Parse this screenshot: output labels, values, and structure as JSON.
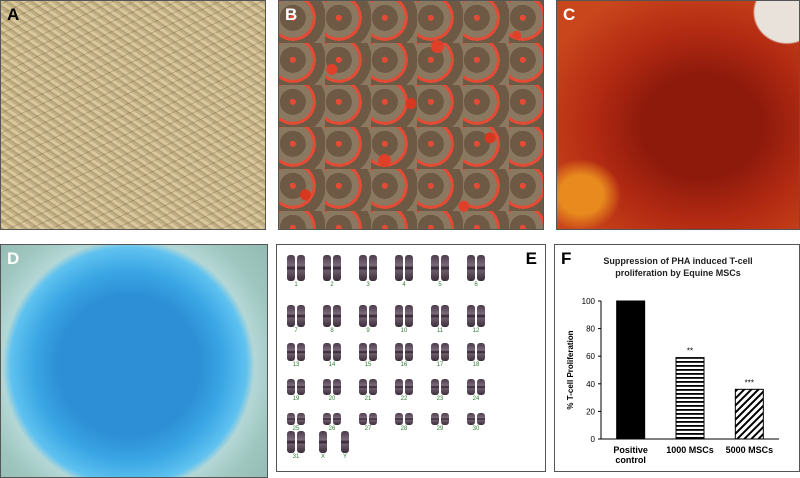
{
  "panels": {
    "a": {
      "label": "A"
    },
    "b": {
      "label": "B"
    },
    "c": {
      "label": "C"
    },
    "d": {
      "label": "D"
    },
    "e": {
      "label": "E"
    },
    "f": {
      "label": "F"
    }
  },
  "karyotype": {
    "rows": [
      [
        "1",
        "2",
        "3",
        "4",
        "5",
        "6"
      ],
      [
        "7",
        "8",
        "9",
        "10",
        "11",
        "12"
      ],
      [
        "13",
        "14",
        "15",
        "16",
        "17",
        "18"
      ],
      [
        "19",
        "20",
        "21",
        "22",
        "23",
        "24"
      ],
      [
        "25",
        "26",
        "27",
        "28",
        "29",
        "30"
      ],
      [
        "31",
        "X",
        "Y"
      ]
    ]
  },
  "chart_data": {
    "type": "bar",
    "title_line1": "Suppression of PHA induced T-cell",
    "title_line2": "proliferation by Equine MSCs",
    "ylabel": "% T-cell Proliferation",
    "categories": [
      "Positive control",
      "1000 MSCs",
      "5000 MSCs"
    ],
    "category_lines": [
      [
        "Positive",
        "control"
      ],
      [
        "1000 MSCs"
      ],
      [
        "5000 MSCs"
      ]
    ],
    "values": [
      100,
      59,
      36
    ],
    "annotations": [
      "",
      "**",
      "***"
    ],
    "fills": [
      "solid",
      "horizontal-stripes",
      "diagonal-stripes"
    ],
    "ylim": [
      0,
      100
    ],
    "yticks": [
      0,
      20,
      40,
      60,
      80,
      100
    ]
  }
}
